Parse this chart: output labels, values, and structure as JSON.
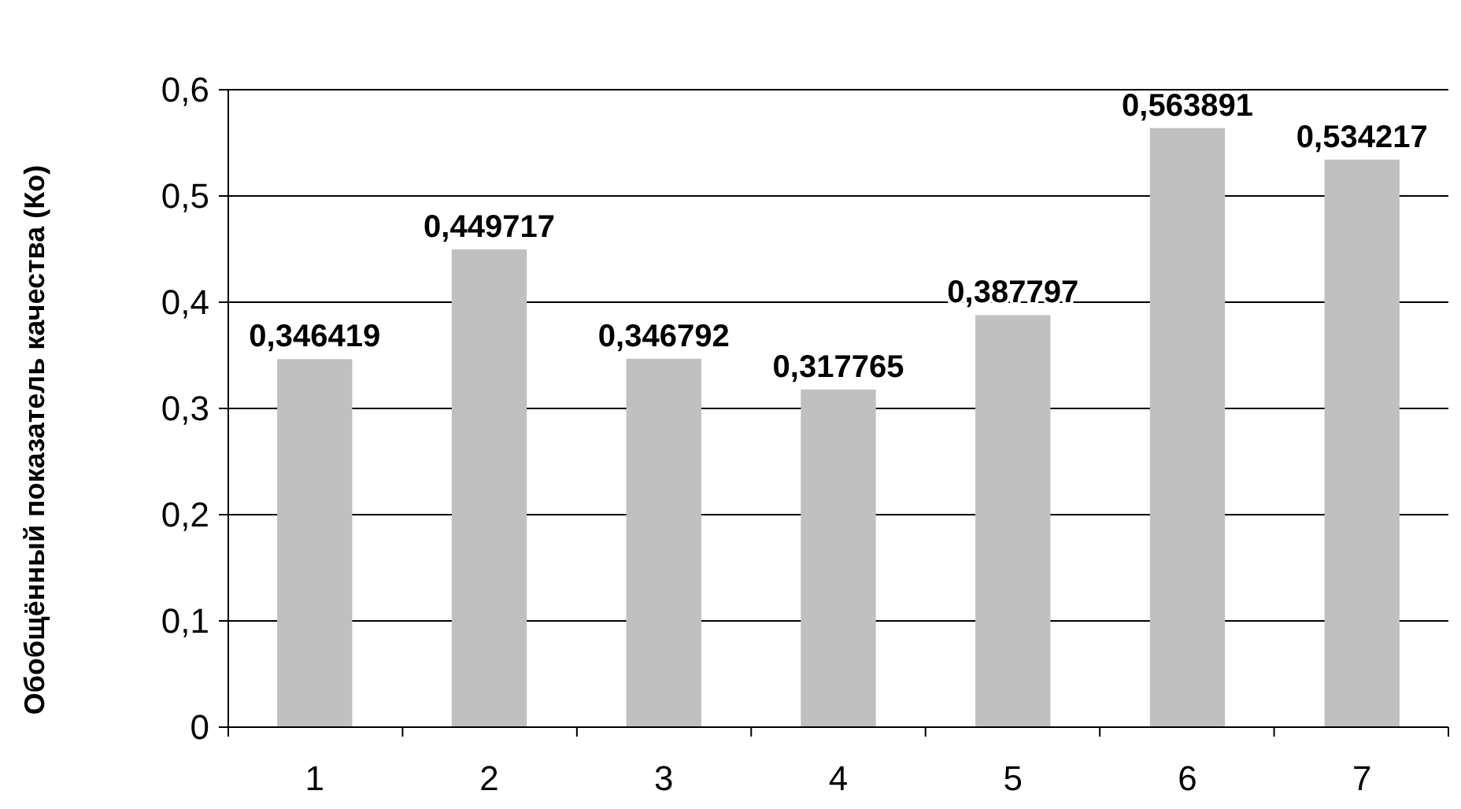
{
  "chart_data": {
    "type": "bar",
    "ylabel": "Обобщённый показатель качества (Ко)",
    "categories": [
      "1",
      "2",
      "3",
      "4",
      "5",
      "6",
      "7"
    ],
    "values": [
      0.346419,
      0.449717,
      0.346792,
      0.317765,
      0.387797,
      0.563891,
      0.534217
    ],
    "value_labels": [
      "0,346419",
      "0,449717",
      "0,346792",
      "0,317765",
      "0,387797",
      "0,563891",
      "0,534217"
    ],
    "color": "#c0c0c0",
    "ylim": [
      0,
      0.6
    ],
    "yticks": [
      {
        "value": 0,
        "label": "0"
      },
      {
        "value": 0.1,
        "label": "0,1"
      },
      {
        "value": 0.2,
        "label": "0,2"
      },
      {
        "value": 0.3,
        "label": "0,3"
      },
      {
        "value": 0.4,
        "label": "0,4"
      },
      {
        "value": 0.5,
        "label": "0,5"
      },
      {
        "value": 0.6,
        "label": "0,6"
      }
    ],
    "grid": "y"
  }
}
